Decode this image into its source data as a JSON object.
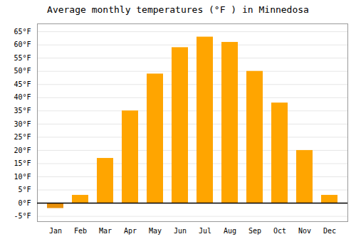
{
  "chart_data": {
    "type": "bar",
    "title": "Average monthly temperatures (°F ) in Minnedosa",
    "categories": [
      "Jan",
      "Feb",
      "Mar",
      "Apr",
      "May",
      "Jun",
      "Jul",
      "Aug",
      "Sep",
      "Oct",
      "Nov",
      "Dec"
    ],
    "values": [
      -2,
      3,
      17,
      35,
      49,
      59,
      63,
      61,
      50,
      38,
      20,
      3
    ],
    "colors": [
      "#E8900A",
      "#FFA500",
      "#FFA500",
      "#FFA500",
      "#FFA500",
      "#FFA500",
      "#FFA500",
      "#FFA500",
      "#FFA500",
      "#FFA500",
      "#FFA500",
      "#FFA500"
    ],
    "ylim": [
      -7,
      68
    ],
    "yticks": [
      {
        "value": -5,
        "label": "-5°F"
      },
      {
        "value": 0,
        "label": "0°F"
      },
      {
        "value": 5,
        "label": "5°F"
      },
      {
        "value": 10,
        "label": "10°F"
      },
      {
        "value": 15,
        "label": "15°F"
      },
      {
        "value": 20,
        "label": "20°F"
      },
      {
        "value": 25,
        "label": "25°F"
      },
      {
        "value": 30,
        "label": "30°F"
      },
      {
        "value": 35,
        "label": "35°F"
      },
      {
        "value": 40,
        "label": "40°F"
      },
      {
        "value": 45,
        "label": "45°F"
      },
      {
        "value": 50,
        "label": "50°F"
      },
      {
        "value": 55,
        "label": "55°F"
      },
      {
        "value": 60,
        "label": "60°F"
      },
      {
        "value": 65,
        "label": "65°F"
      }
    ],
    "grid": true
  }
}
